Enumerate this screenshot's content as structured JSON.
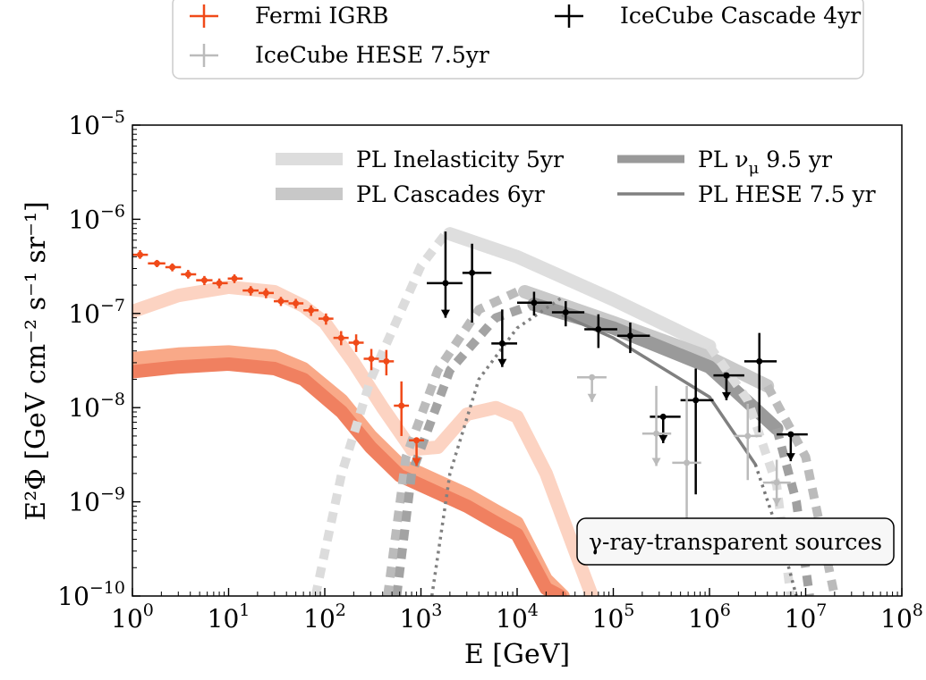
{
  "chart_data": {
    "type": "line",
    "title": "",
    "xlabel": "E [GeV]",
    "ylabel": "E²Φ [GeV cm⁻² s⁻¹ sr⁻¹]",
    "xlim": [
      1,
      100000000
    ],
    "ylim": [
      1e-10,
      1e-05
    ],
    "xscale": "log",
    "yscale": "log",
    "grid": false,
    "x_ticks": [
      {
        "value": 1,
        "base": "10",
        "exp": "0"
      },
      {
        "value": 10,
        "base": "10",
        "exp": "1"
      },
      {
        "value": 100,
        "base": "10",
        "exp": "2"
      },
      {
        "value": 1000,
        "base": "10",
        "exp": "3"
      },
      {
        "value": 10000,
        "base": "10",
        "exp": "4"
      },
      {
        "value": 100000,
        "base": "10",
        "exp": "5"
      },
      {
        "value": 1000000,
        "base": "10",
        "exp": "6"
      },
      {
        "value": 10000000,
        "base": "10",
        "exp": "7"
      },
      {
        "value": 100000000,
        "base": "10",
        "exp": "8"
      }
    ],
    "y_ticks": [
      {
        "value": 1e-10,
        "base": "10",
        "exp": "−10"
      },
      {
        "value": 1e-09,
        "base": "10",
        "exp": "−9"
      },
      {
        "value": 1e-08,
        "base": "10",
        "exp": "−8"
      },
      {
        "value": 1e-07,
        "base": "10",
        "exp": "−7"
      },
      {
        "value": 1e-06,
        "base": "10",
        "exp": "−6"
      },
      {
        "value": 1e-05,
        "base": "10",
        "exp": "−5"
      }
    ],
    "annotation": "γ-ray-transparent sources",
    "outer_legend": [
      {
        "label": "Fermi IGRB",
        "color": "#f04a19"
      },
      {
        "label": "IceCube Cascade 4yr",
        "color": "#000000"
      },
      {
        "label": "IceCube HESE 7.5yr",
        "color": "#bbbbbb"
      }
    ],
    "inner_legend": [
      {
        "label": "PL Inelasticity 5yr",
        "color": "#dddddd",
        "style": "thick"
      },
      {
        "label": "PL ν",
        "sub": "μ",
        "label_tail": " 9.5 yr",
        "color": "#999999",
        "style": "medium"
      },
      {
        "label": "PL Cascades 6yr",
        "color": "#c8c8c8",
        "style": "thick"
      },
      {
        "label": "PL HESE 7.5 yr",
        "color": "#808080",
        "style": "thin"
      }
    ],
    "series": [
      {
        "name": "Fermi IGRB",
        "kind": "errorbar",
        "color": "#f04a19",
        "points": [
          {
            "x": 1.2,
            "y": 4.2e-07,
            "xlo": 1.0,
            "xhi": 1.45,
            "ylo": 3.8e-07,
            "yhi": 4.7e-07
          },
          {
            "x": 1.8,
            "y": 3.4e-07,
            "xlo": 1.45,
            "xhi": 2.2,
            "ylo": 3.1e-07,
            "yhi": 3.7e-07
          },
          {
            "x": 2.6,
            "y": 3.1e-07,
            "xlo": 2.2,
            "xhi": 3.2,
            "ylo": 2.8e-07,
            "yhi": 3.4e-07
          },
          {
            "x": 3.8,
            "y": 2.6e-07,
            "xlo": 3.2,
            "xhi": 4.6,
            "ylo": 2.35e-07,
            "yhi": 2.9e-07
          },
          {
            "x": 5.6,
            "y": 2.25e-07,
            "xlo": 4.6,
            "xhi": 6.8,
            "ylo": 2e-07,
            "yhi": 2.5e-07
          },
          {
            "x": 8.0,
            "y": 2.1e-07,
            "xlo": 6.8,
            "xhi": 9.8,
            "ylo": 1.85e-07,
            "yhi": 2.35e-07
          },
          {
            "x": 11.5,
            "y": 2.35e-07,
            "xlo": 9.8,
            "xhi": 14.0,
            "ylo": 2.1e-07,
            "yhi": 2.6e-07
          },
          {
            "x": 17.0,
            "y": 1.75e-07,
            "xlo": 14.0,
            "xhi": 20.5,
            "ylo": 1.55e-07,
            "yhi": 1.95e-07
          },
          {
            "x": 24.5,
            "y": 1.65e-07,
            "xlo": 20.5,
            "xhi": 29.5,
            "ylo": 1.45e-07,
            "yhi": 1.85e-07
          },
          {
            "x": 35.0,
            "y": 1.35e-07,
            "xlo": 29.5,
            "xhi": 42.0,
            "ylo": 1.2e-07,
            "yhi": 1.5e-07
          },
          {
            "x": 50.0,
            "y": 1.28e-07,
            "xlo": 42.0,
            "xhi": 60.0,
            "ylo": 1.13e-07,
            "yhi": 1.43e-07
          },
          {
            "x": 72.0,
            "y": 1.08e-07,
            "xlo": 60.0,
            "xhi": 86.0,
            "ylo": 9.4e-08,
            "yhi": 1.22e-07
          },
          {
            "x": 103.0,
            "y": 8.8e-08,
            "xlo": 86.0,
            "xhi": 123.0,
            "ylo": 7.6e-08,
            "yhi": 1e-07
          },
          {
            "x": 148.0,
            "y": 5.5e-08,
            "xlo": 123.0,
            "xhi": 177.0,
            "ylo": 4.6e-08,
            "yhi": 6.5e-08
          },
          {
            "x": 212.0,
            "y": 4.9e-08,
            "xlo": 177.0,
            "xhi": 254.0,
            "ylo": 3.9e-08,
            "yhi": 6e-08
          },
          {
            "x": 305.0,
            "y": 3.3e-08,
            "xlo": 254.0,
            "xhi": 365.0,
            "ylo": 2.5e-08,
            "yhi": 4.2e-08
          },
          {
            "x": 437.0,
            "y": 3.1e-08,
            "xlo": 365.0,
            "xhi": 523.0,
            "ylo": 2.2e-08,
            "yhi": 4.1e-08
          },
          {
            "x": 627.0,
            "y": 1.05e-08,
            "xlo": 523.0,
            "xhi": 750.0,
            "ylo": 5e-09,
            "yhi": 1.9e-08
          },
          {
            "x": 900.0,
            "y": 4.5e-09,
            "xlo": 750.0,
            "xhi": 1076.0,
            "ylo": 2.4e-09,
            "yhi": 4.5e-09,
            "upper_limit": true
          }
        ]
      },
      {
        "name": "IceCube Cascade 4yr",
        "kind": "errorbar",
        "color": "#000000",
        "points": [
          {
            "x": 1800,
            "y": 2.1e-07,
            "xlo": 1150,
            "xhi": 2700,
            "ylo": 9e-08,
            "yhi": 7.4e-07,
            "upper_limit": true
          },
          {
            "x": 3400,
            "y": 2.7e-07,
            "xlo": 2700,
            "xhi": 5400,
            "ylo": 8e-08,
            "yhi": 5.5e-07
          },
          {
            "x": 7000,
            "y": 4.8e-08,
            "xlo": 5400,
            "xhi": 10000,
            "ylo": 2.7e-08,
            "yhi": 1.1e-07,
            "upper_limit": true
          },
          {
            "x": 15000,
            "y": 1.3e-07,
            "xlo": 10000,
            "xhi": 23000,
            "ylo": 9.5e-08,
            "yhi": 1.7e-07
          },
          {
            "x": 32000,
            "y": 1.03e-07,
            "xlo": 23000,
            "xhi": 50000,
            "ylo": 7.3e-08,
            "yhi": 1.35e-07
          },
          {
            "x": 70000,
            "y": 6.8e-08,
            "xlo": 50000,
            "xhi": 110000,
            "ylo": 4.3e-08,
            "yhi": 9.8e-08
          },
          {
            "x": 150000,
            "y": 5.8e-08,
            "xlo": 110000,
            "xhi": 240000,
            "ylo": 3.8e-08,
            "yhi": 8e-08
          },
          {
            "x": 330000,
            "y": 8e-09,
            "xlo": 240000,
            "xhi": 500000,
            "ylo": 4.2e-09,
            "yhi": 8e-09,
            "upper_limit": true
          },
          {
            "x": 720000,
            "y": 1.2e-08,
            "xlo": 500000,
            "xhi": 1100000,
            "ylo": 1.2e-09,
            "yhi": 2.6e-08
          },
          {
            "x": 1500000,
            "y": 2.2e-08,
            "xlo": 1100000,
            "xhi": 2300000,
            "ylo": 1.2e-08,
            "yhi": 2.2e-08,
            "upper_limit": true
          },
          {
            "x": 3300000,
            "y": 3.1e-08,
            "xlo": 2300000,
            "xhi": 5000000,
            "ylo": 5.5e-09,
            "yhi": 6.2e-08
          },
          {
            "x": 7000000,
            "y": 5.2e-09,
            "xlo": 5000000,
            "xhi": 10500000,
            "ylo": 2.7e-09,
            "yhi": 5.2e-09,
            "upper_limit": true
          }
        ]
      },
      {
        "name": "IceCube HESE 7.5yr",
        "kind": "errorbar",
        "color": "#bbbbbb",
        "points": [
          {
            "x": 60000,
            "y": 2.1e-08,
            "xlo": 42000,
            "xhi": 85000,
            "ylo": 1.15e-08,
            "yhi": 2.1e-08,
            "upper_limit": true
          },
          {
            "x": 280000,
            "y": 5.3e-09,
            "xlo": 200000,
            "xhi": 400000,
            "ylo": 2.4e-09,
            "yhi": 1.7e-08,
            "upper_limit": true
          },
          {
            "x": 580000,
            "y": 2.6e-09,
            "xlo": 410000,
            "xhi": 820000,
            "ylo": 5e-10,
            "yhi": 1.7e-08
          },
          {
            "x": 2500000,
            "y": 5e-09,
            "xlo": 1800000,
            "xhi": 3500000,
            "ylo": 1.7e-09,
            "yhi": 1.1e-08
          },
          {
            "x": 5000000,
            "y": 1.6e-09,
            "xlo": 3600000,
            "xhi": 7000000,
            "ylo": 9e-10,
            "yhi": 2.8e-09,
            "upper_limit": true
          }
        ]
      },
      {
        "name": "PL Inelasticity 5yr",
        "kind": "band",
        "color": "#dedede",
        "points": [
          [
            2000,
            7e-07
          ],
          [
            10000,
            4e-07
          ],
          [
            100000,
            1.4e-07
          ],
          [
            1000000,
            4.5e-08
          ]
        ]
      },
      {
        "name": "PL Cascades 6yr",
        "kind": "band",
        "color": "#c9c9c9",
        "points": [
          [
            12000,
            1.7e-07
          ],
          [
            100000,
            8e-08
          ],
          [
            1000000,
            3.4e-08
          ],
          [
            4000000,
            1.7e-08
          ]
        ]
      },
      {
        "name": "PL ν μ 9.5 yr",
        "kind": "band",
        "color": "#9a9a9a",
        "points": [
          [
            15000,
            1.25e-07
          ],
          [
            100000,
            7e-08
          ],
          [
            1000000,
            2.7e-08
          ],
          [
            5000000,
            6e-09
          ]
        ]
      },
      {
        "name": "PL HESE 7.5 yr",
        "kind": "line",
        "color": "#808080",
        "points": [
          [
            30000,
            9.5e-08
          ],
          [
            100000,
            5.5e-08
          ],
          [
            1000000,
            1.3e-08
          ],
          [
            3000000,
            2.5e-09
          ]
        ]
      },
      {
        "kind": "dashed",
        "color": "#dcdcdc",
        "points": [
          [
            80,
            1e-10
          ],
          [
            150,
            2e-09
          ],
          [
            300,
            2e-08
          ],
          [
            1000,
            3.2e-07
          ],
          [
            1800,
            7e-07
          ]
        ]
      },
      {
        "kind": "dashed",
        "color": "#bbbbbb",
        "points": [
          [
            450,
            1e-10
          ],
          [
            700,
            3e-09
          ],
          [
            1500,
            2.5e-08
          ],
          [
            4000,
            1.1e-07
          ],
          [
            10000,
            1.7e-07
          ]
        ]
      },
      {
        "kind": "dashed",
        "color": "#a3a3a3",
        "points": [
          [
            560,
            1e-10
          ],
          [
            800,
            2e-09
          ],
          [
            2000,
            2.5e-08
          ],
          [
            6000,
            9e-08
          ],
          [
            15000,
            1.25e-07
          ]
        ]
      },
      {
        "kind": "dotted",
        "color": "#808080",
        "points": [
          [
            1300,
            1e-10
          ],
          [
            2000,
            2e-09
          ],
          [
            4000,
            2e-08
          ],
          [
            10000,
            7e-08
          ],
          [
            30000,
            1.5e-07
          ]
        ]
      },
      {
        "kind": "dashed",
        "color": "#dddddd",
        "points": [
          [
            1000000,
            4.5e-08
          ],
          [
            2500000,
            1.2e-08
          ],
          [
            5000000,
            1.5e-09
          ],
          [
            7000000,
            1e-10
          ]
        ]
      },
      {
        "kind": "dashed",
        "color": "#a0a0a0",
        "points": [
          [
            5000000,
            6e-09
          ],
          [
            8000000,
            1e-09
          ],
          [
            11000000,
            1e-10
          ]
        ]
      },
      {
        "kind": "dashed",
        "color": "#bbbbbb",
        "points": [
          [
            4000000,
            1.7e-08
          ],
          [
            10000000,
            3e-09
          ],
          [
            20000000,
            1e-10
          ]
        ]
      },
      {
        "kind": "dotted",
        "color": "#777777",
        "points": [
          [
            3000000,
            2.5e-09
          ],
          [
            6000000,
            3e-10
          ],
          [
            8000000,
            1e-10
          ]
        ]
      },
      {
        "kind": "band",
        "color": "#fcd3c2",
        "points": [
          [
            1,
            1.05e-07
          ],
          [
            3,
            1.55e-07
          ],
          [
            10,
            1.9e-07
          ],
          [
            30,
            1.7e-07
          ],
          [
            60,
            1.2e-07
          ],
          [
            100,
            8e-08
          ],
          [
            200,
            3e-08
          ],
          [
            400,
            1e-08
          ],
          [
            800,
            3.6e-09
          ],
          [
            1500,
            3.8e-09
          ],
          [
            3000,
            8.5e-09
          ],
          [
            6000,
            1e-08
          ],
          [
            10000,
            8e-09
          ],
          [
            20000,
            2e-09
          ],
          [
            40000,
            3e-10
          ],
          [
            60000,
            1e-10
          ]
        ]
      },
      {
        "kind": "band",
        "color": "#f9a988",
        "points": [
          [
            1,
            3.3e-08
          ],
          [
            3,
            3.7e-08
          ],
          [
            10,
            3.9e-08
          ],
          [
            30,
            3.5e-08
          ],
          [
            60,
            2.6e-08
          ],
          [
            150,
            1.2e-08
          ],
          [
            300,
            5e-09
          ],
          [
            600,
            2.5e-09
          ],
          [
            1000,
            2e-09
          ],
          [
            3000,
            1.2e-09
          ],
          [
            6000,
            8e-10
          ],
          [
            10000,
            6e-10
          ],
          [
            20000,
            1.5e-10
          ],
          [
            30000,
            1e-10
          ]
        ]
      },
      {
        "kind": "band",
        "color": "#f08060",
        "points": [
          [
            1,
            2.4e-08
          ],
          [
            3,
            2.7e-08
          ],
          [
            10,
            2.9e-08
          ],
          [
            30,
            2.6e-08
          ],
          [
            60,
            2e-08
          ],
          [
            150,
            9e-09
          ],
          [
            300,
            3.8e-09
          ],
          [
            600,
            1.9e-09
          ],
          [
            1000,
            1.5e-09
          ],
          [
            3000,
            9e-10
          ],
          [
            6000,
            6e-10
          ],
          [
            10000,
            4.5e-10
          ],
          [
            20000,
            1.2e-10
          ],
          [
            28000,
            1e-10
          ]
        ]
      }
    ]
  }
}
